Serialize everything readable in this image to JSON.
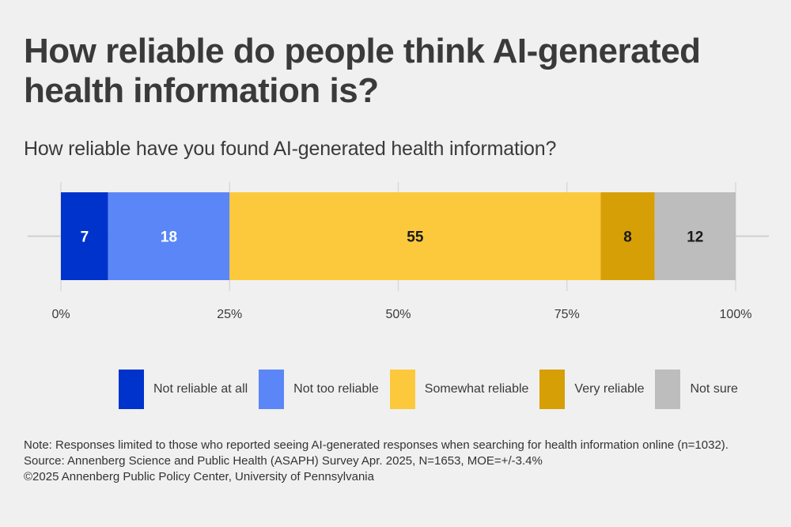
{
  "title": "How reliable do people think AI-generated health information is?",
  "subtitle": "How reliable have you found AI-generated health information?",
  "chart_data": {
    "type": "bar",
    "orientation": "horizontal",
    "stacked": true,
    "xlim": [
      0,
      100
    ],
    "ticks": [
      "0%",
      "25%",
      "50%",
      "75%",
      "100%"
    ],
    "tick_values": [
      0,
      25,
      50,
      75,
      100
    ],
    "grid": true,
    "legend_position": "bottom",
    "series": [
      {
        "name": "Not reliable at all",
        "value": 7,
        "label": "7",
        "color": "#0033cc",
        "label_color": "#ffffff"
      },
      {
        "name": "Not too reliable",
        "value": 18,
        "label": "18",
        "color": "#5b86f7",
        "label_color": "#ffffff"
      },
      {
        "name": "Somewhat reliable",
        "value": 55,
        "label": "55",
        "color": "#fcc93c",
        "label_color": "#1a1a1a"
      },
      {
        "name": "Very reliable",
        "value": 8,
        "label": "8",
        "color": "#d79f06",
        "label_color": "#1a1a1a"
      },
      {
        "name": "Not sure",
        "value": 12,
        "label": "12",
        "color": "#bdbdbd",
        "label_color": "#1a1a1a"
      }
    ]
  },
  "notes": [
    "Note: Responses limited to those who reported seeing AI-generated responses when searching for health information online (n=1032).",
    "Source: Annenberg Science and Public Health (ASAPH) Survey Apr. 2025, N=1653, MOE=+/-3.4%",
    "©2025 Annenberg Public Policy Center, University of Pennsylvania"
  ]
}
